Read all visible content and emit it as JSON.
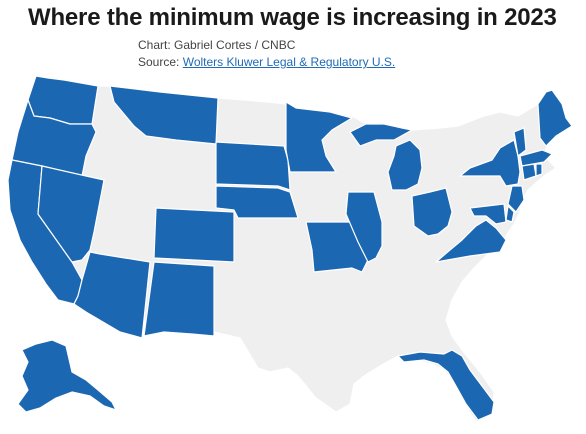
{
  "title": "Where the minimum wage is increasing in 2023",
  "credit": "Chart: Gabriel Cortes / CNBC",
  "source_prefix": "Source: ",
  "source_link": "Wolters Kluwer Legal & Regulatory U.S.",
  "colors": {
    "increasing": "#1c67b1",
    "not_increasing": "#efefef",
    "border": "#ffffff",
    "link": "#1f6bb5"
  },
  "map_data": {
    "type": "choropleth",
    "region": "United States",
    "increasing_states": [
      "Alaska",
      "Arizona",
      "California",
      "Colorado",
      "Connecticut",
      "Delaware",
      "Florida",
      "Illinois",
      "Maine",
      "Maryland",
      "Massachusetts",
      "Michigan",
      "Minnesota",
      "Missouri",
      "Montana",
      "Nebraska",
      "Nevada",
      "New Jersey",
      "New Mexico",
      "New York",
      "Ohio",
      "Oregon",
      "Rhode Island",
      "South Dakota",
      "Vermont",
      "Virginia",
      "Washington"
    ]
  }
}
